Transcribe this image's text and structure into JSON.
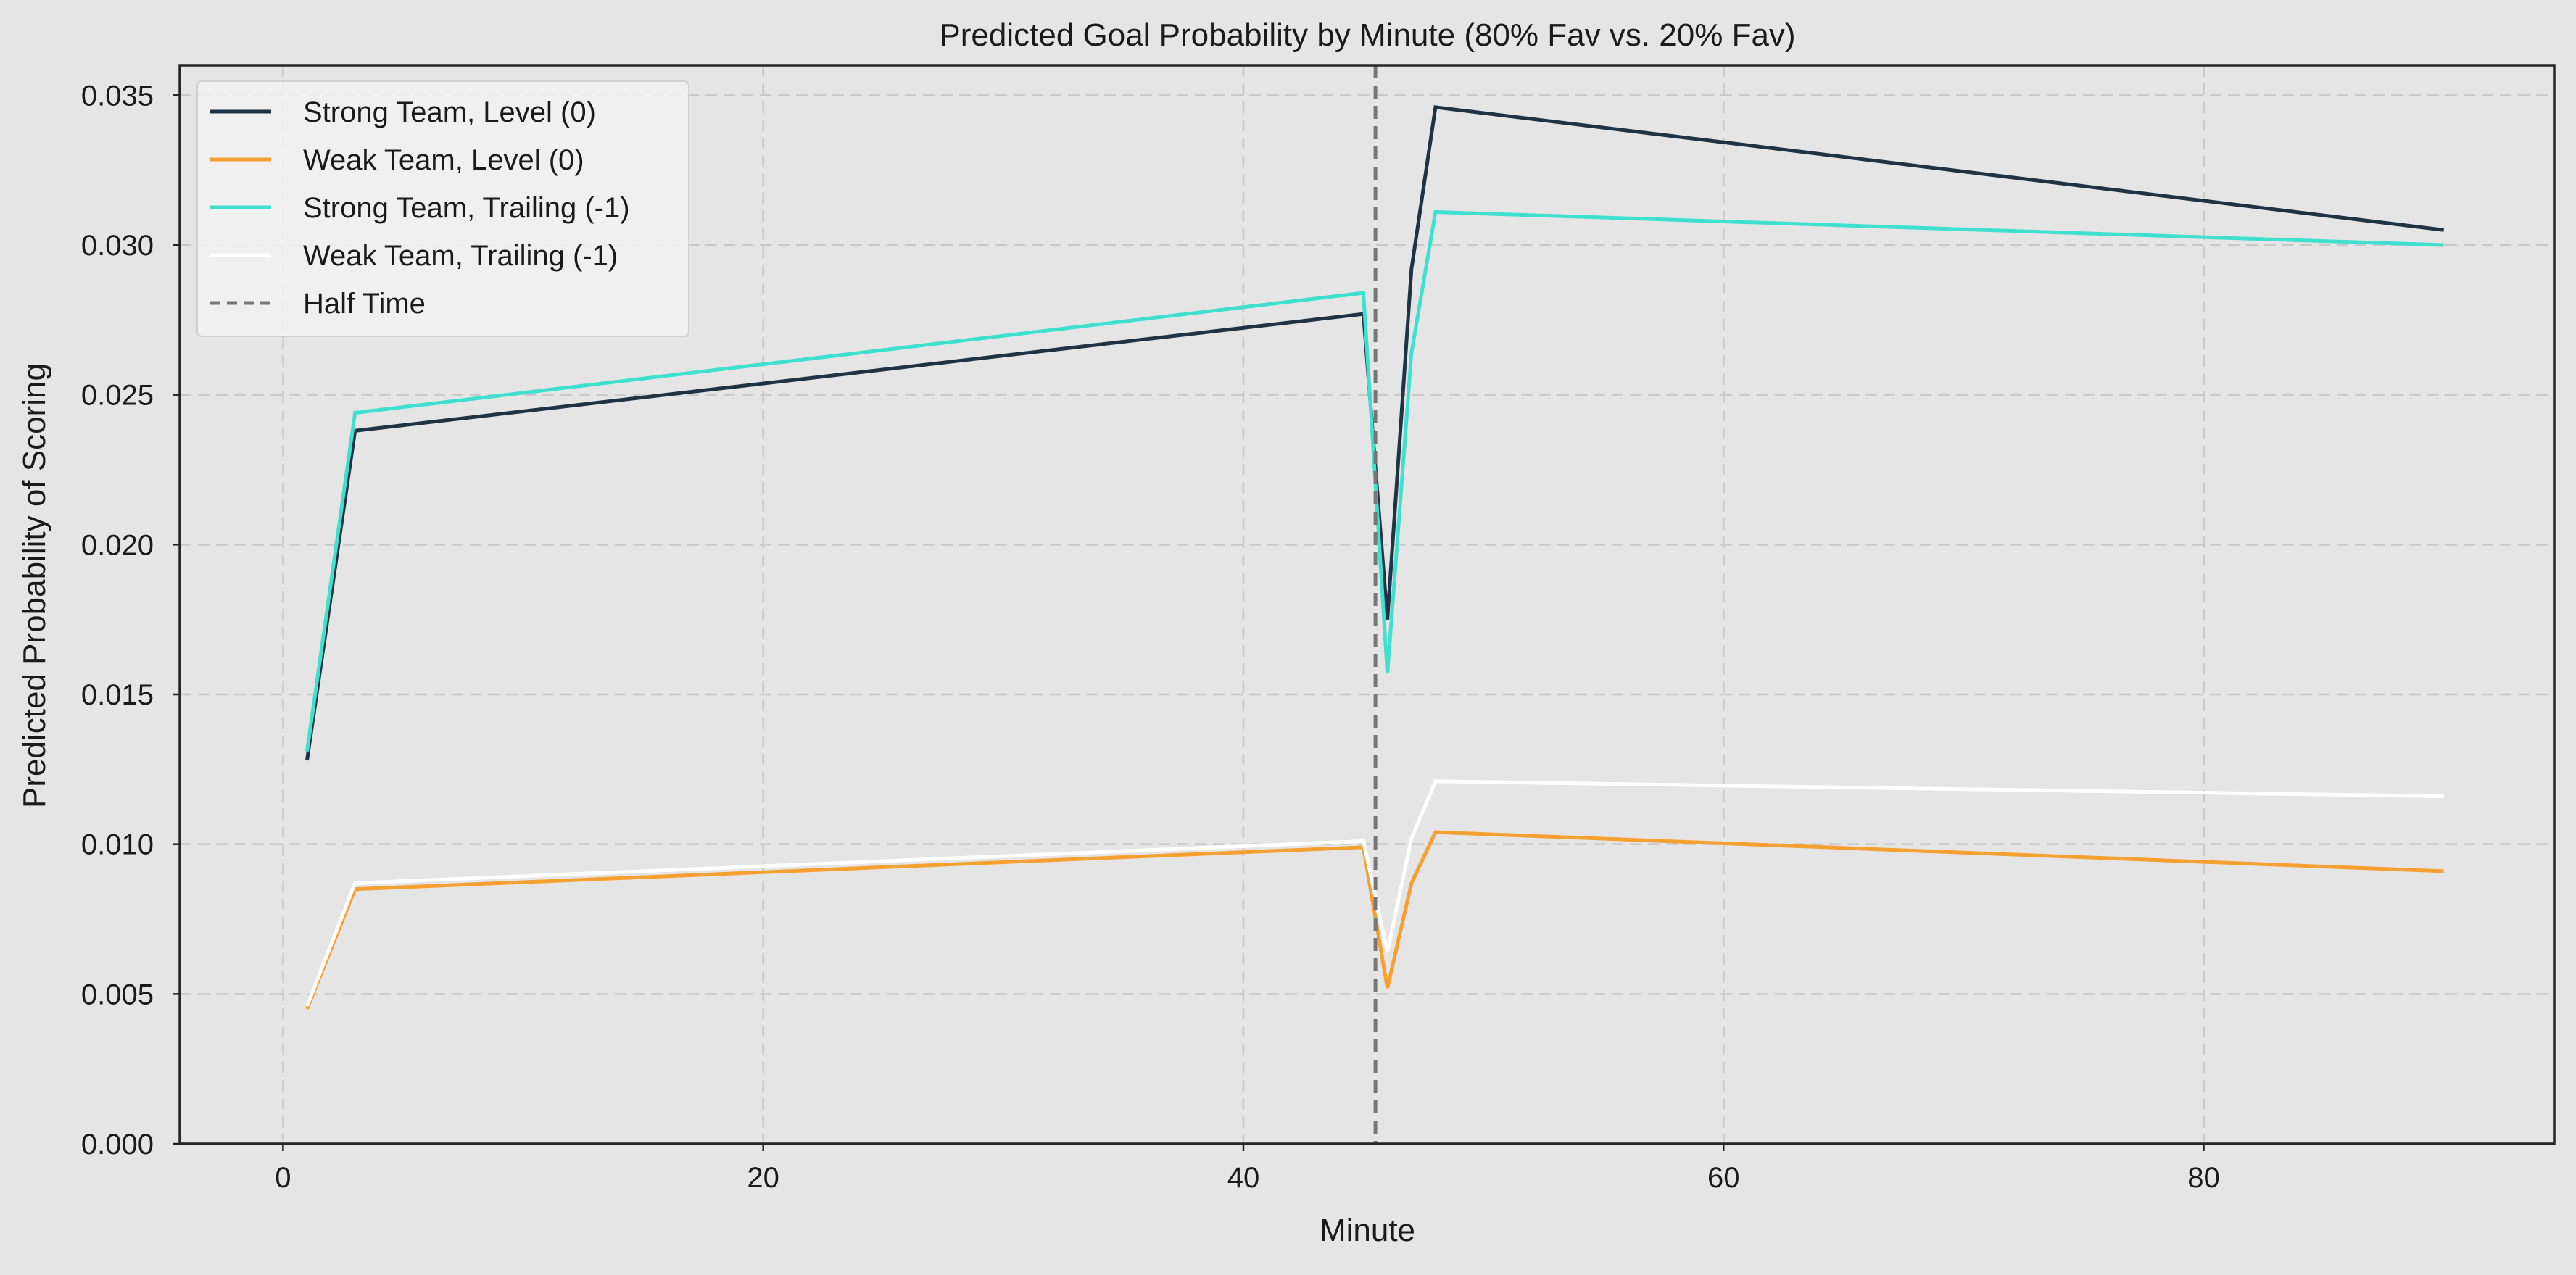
{
  "chart_data": {
    "type": "line",
    "title": "Predicted Goal Probability by Minute (80% Fav vs. 20% Fav)",
    "xlabel": "Minute",
    "ylabel": "Predicted Probability of Scoring",
    "xlim": [
      -4.3,
      94.6
    ],
    "ylim": [
      0,
      0.036
    ],
    "xticks": [
      0,
      20,
      40,
      60,
      80
    ],
    "xtick_labels": [
      "0",
      "20",
      "40",
      "60",
      "80"
    ],
    "yticks": [
      0,
      0.005,
      0.01,
      0.015,
      0.02,
      0.025,
      0.03,
      0.035
    ],
    "ytick_labels": [
      "0.000",
      "0.005",
      "0.010",
      "0.015",
      "0.020",
      "0.025",
      "0.030",
      "0.035"
    ],
    "grid": true,
    "legend_position": "top-left",
    "background_color": "#e5e5e5",
    "vline": {
      "x": 45.5,
      "label": "Half Time",
      "color": "#777777",
      "style": "dashed"
    },
    "series": [
      {
        "name": "Strong Team, Level (0)",
        "color": "#1f3344",
        "x": [
          1,
          3,
          45,
          46,
          47,
          48,
          90
        ],
        "y": [
          0.0128,
          0.0238,
          0.0277,
          0.0175,
          0.0292,
          0.0346,
          0.0305
        ]
      },
      {
        "name": "Weak Team, Level (0)",
        "color": "#f5a030",
        "x": [
          1,
          3,
          45,
          46,
          47,
          48,
          90
        ],
        "y": [
          0.0045,
          0.0085,
          0.0099,
          0.0052,
          0.0087,
          0.0104,
          0.0091
        ]
      },
      {
        "name": "Strong Team, Trailing (-1)",
        "color": "#40e0d0",
        "x": [
          1,
          3,
          45,
          46,
          47,
          48,
          90
        ],
        "y": [
          0.0131,
          0.0244,
          0.0284,
          0.0157,
          0.0264,
          0.0311,
          0.03
        ]
      },
      {
        "name": "Weak Team, Trailing (-1)",
        "color": "#ffffff",
        "x": [
          1,
          3,
          45,
          46,
          47,
          48,
          90
        ],
        "y": [
          0.0046,
          0.0087,
          0.0101,
          0.0064,
          0.0102,
          0.0121,
          0.0116
        ]
      }
    ]
  }
}
